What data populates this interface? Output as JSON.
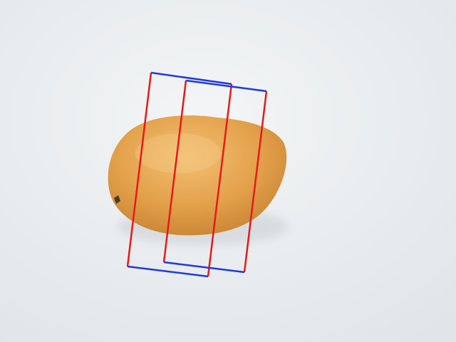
{
  "scene": {
    "background_color": "#eceff1",
    "object": {
      "kind": "mango",
      "colors": {
        "base": "#e3a04a",
        "highlight": "#f2c074",
        "shadow": "#c27e2e",
        "stem": "#4a3a2a"
      }
    },
    "grasp_rectangles": [
      {
        "edge_color_short": "#1f3bd6",
        "edge_color_long": "#e21b1b"
      },
      {
        "edge_color_short": "#1f3bd6",
        "edge_color_long": "#e21b1b"
      }
    ]
  }
}
